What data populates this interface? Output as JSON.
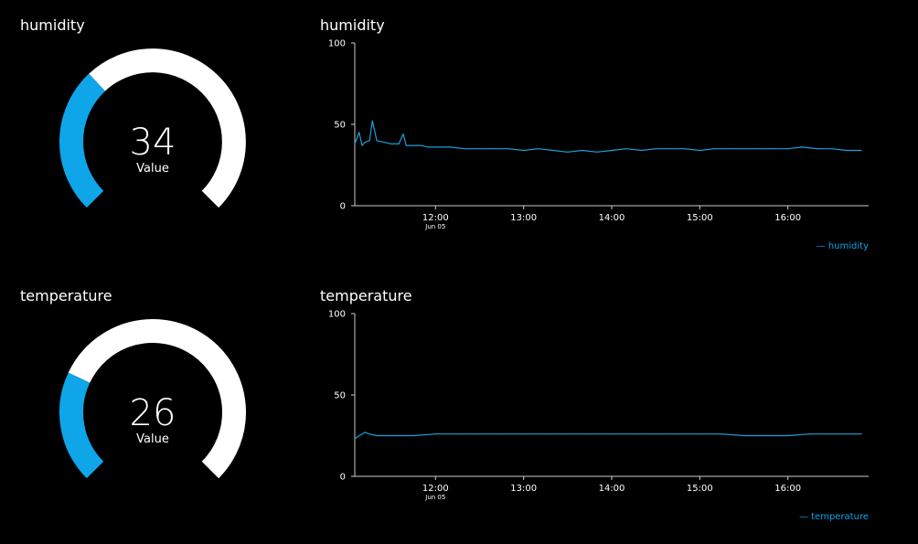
{
  "colors": {
    "background": "#000000",
    "gauge_track": "#ffffff",
    "accent": "#0ea5e9",
    "series_line": "#1f9fd6",
    "axis": "#cccccc"
  },
  "gauges": [
    {
      "title": "humidity",
      "value": "34",
      "label": "Value",
      "min": 0,
      "max": 100,
      "fraction": 0.34
    },
    {
      "title": "temperature",
      "value": "26",
      "label": "Value",
      "min": 0,
      "max": 100,
      "fraction": 0.26
    }
  ],
  "chart_data": [
    {
      "type": "line",
      "title": "humidity",
      "ylim": [
        0,
        100
      ],
      "yticks": [
        "0",
        "50",
        "100"
      ],
      "xticks": [
        "12:00",
        "13:00",
        "14:00",
        "15:00",
        "16:00"
      ],
      "xtick_sublabel": "Jun 05",
      "xlabel": "",
      "ylabel": "",
      "legend": "bottom-right",
      "grid": false,
      "series": [
        {
          "name": "humidity",
          "x": [
            "11:05",
            "11:08",
            "11:10",
            "11:12",
            "11:15",
            "11:17",
            "11:20",
            "11:25",
            "11:30",
            "11:35",
            "11:38",
            "11:40",
            "11:45",
            "11:50",
            "11:55",
            "12:00",
            "12:10",
            "12:20",
            "12:30",
            "12:40",
            "12:50",
            "13:00",
            "13:10",
            "13:20",
            "13:30",
            "13:40",
            "13:50",
            "14:00",
            "14:10",
            "14:20",
            "14:30",
            "14:40",
            "14:50",
            "15:00",
            "15:10",
            "15:20",
            "15:30",
            "15:40",
            "15:50",
            "16:00",
            "16:10",
            "16:20",
            "16:30",
            "16:40",
            "16:50"
          ],
          "y": [
            38,
            45,
            37,
            39,
            40,
            52,
            40,
            39,
            38,
            38,
            44,
            37,
            37,
            37,
            36,
            36,
            36,
            35,
            35,
            35,
            35,
            34,
            35,
            34,
            33,
            34,
            33,
            34,
            35,
            34,
            35,
            35,
            35,
            34,
            35,
            35,
            35,
            35,
            35,
            35,
            36,
            35,
            35,
            34,
            34
          ]
        }
      ]
    },
    {
      "type": "line",
      "title": "temperature",
      "ylim": [
        0,
        100
      ],
      "yticks": [
        "0",
        "50",
        "100"
      ],
      "xticks": [
        "12:00",
        "13:00",
        "14:00",
        "15:00",
        "16:00"
      ],
      "xtick_sublabel": "Jun 05",
      "xlabel": "",
      "ylabel": "",
      "legend": "bottom-right",
      "grid": false,
      "series": [
        {
          "name": "temperature",
          "x": [
            "11:05",
            "11:08",
            "11:12",
            "11:15",
            "11:20",
            "11:30",
            "11:45",
            "12:00",
            "12:15",
            "12:30",
            "12:45",
            "13:00",
            "13:15",
            "13:30",
            "13:45",
            "14:00",
            "14:15",
            "14:30",
            "14:45",
            "15:00",
            "15:15",
            "15:30",
            "15:45",
            "16:00",
            "16:15",
            "16:30",
            "16:45",
            "16:50"
          ],
          "y": [
            23,
            25,
            27,
            26,
            25,
            25,
            25,
            26,
            26,
            26,
            26,
            26,
            26,
            26,
            26,
            26,
            26,
            26,
            26,
            26,
            26,
            25,
            25,
            25,
            26,
            26,
            26,
            26
          ]
        }
      ]
    }
  ]
}
